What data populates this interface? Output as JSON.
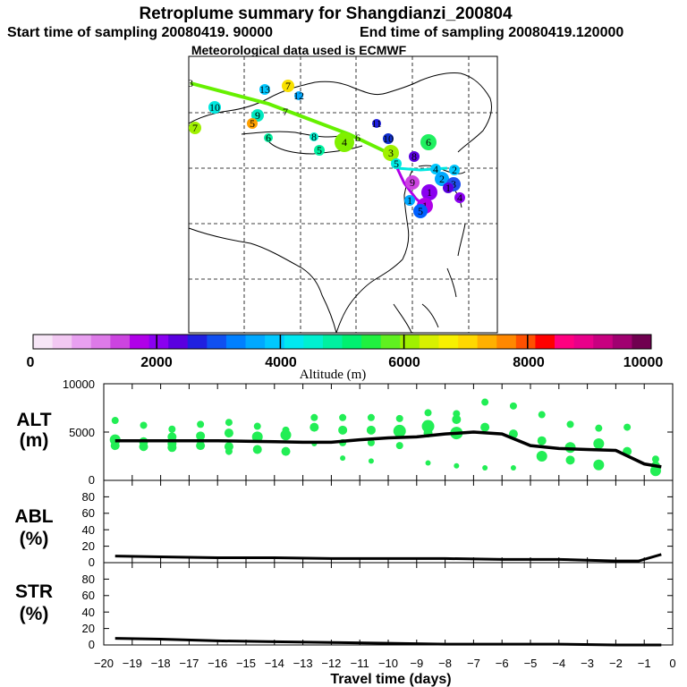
{
  "header": {
    "title": "Retroplume summary for Shangdianzi_200804",
    "start_label": "Start time of sampling 20080419. 90000",
    "end_label": "End time of sampling 20080419.120000",
    "met_label": "Meteorological data used is ECMWF"
  },
  "colorbar": {
    "label": "Altitude (m)",
    "ticks": [
      "0",
      "2000",
      "4000",
      "6000",
      "8000",
      "10000"
    ],
    "min": 0,
    "max": 10000,
    "colors": [
      "#f7e6f7",
      "#f2c8f2",
      "#e8a0f0",
      "#dd7ae8",
      "#cc44e0",
      "#b000e8",
      "#8a00f0",
      "#5a00e0",
      "#2020e0",
      "#1050f0",
      "#0080ff",
      "#00a8ff",
      "#00c8ff",
      "#00e8f0",
      "#00f0d0",
      "#00f0a0",
      "#00f070",
      "#20f040",
      "#60f020",
      "#a0f000",
      "#d8f000",
      "#f8f000",
      "#ffd800",
      "#ffb000",
      "#ff8800",
      "#ff5000",
      "#ff0000",
      "#ff0080",
      "#e8008a",
      "#c80080",
      "#a00070",
      "#700050"
    ]
  },
  "map": {
    "markers": [
      {
        "label": "3",
        "lon": -1,
        "lat": 0,
        "size": 3,
        "color": "#000000"
      },
      {
        "label": "13",
        "size": 6,
        "color": "#00c8ff"
      },
      {
        "label": "7",
        "size": 7,
        "color": "#f8e000"
      },
      {
        "label": "12",
        "size": 5,
        "color": "#00a8ff"
      },
      {
        "label": "10",
        "size": 7,
        "color": "#00e8e0"
      },
      {
        "label": "9",
        "size": 7,
        "color": "#00e8c0"
      },
      {
        "label": "5",
        "size": 6,
        "color": "#ffa000"
      },
      {
        "label": "7",
        "size": 3,
        "color": "#000000"
      },
      {
        "label": "7",
        "size": 7,
        "color": "#a0f000"
      },
      {
        "label": "6",
        "size": 5,
        "color": "#00f0a0"
      },
      {
        "label": "8",
        "size": 5,
        "color": "#00f0d0"
      },
      {
        "label": "5",
        "size": 6,
        "color": "#00f0a0"
      },
      {
        "label": "4",
        "size": 11,
        "color": "#80f000"
      },
      {
        "label": "6",
        "size": 3,
        "color": "#000000"
      },
      {
        "label": "11",
        "size": 5,
        "color": "#2020e0"
      },
      {
        "label": "10",
        "size": 6,
        "color": "#1030d0"
      },
      {
        "label": "6",
        "size": 9,
        "color": "#20f060"
      },
      {
        "label": "3",
        "size": 9,
        "color": "#a0f000"
      },
      {
        "label": "5",
        "size": 6,
        "color": "#00e8e0"
      },
      {
        "label": "8",
        "size": 6,
        "color": "#5a00e0"
      },
      {
        "label": "4",
        "size": 6,
        "color": "#00c8ff"
      },
      {
        "label": "2",
        "size": 6,
        "color": "#00c8ff"
      },
      {
        "label": "9",
        "size": 8,
        "color": "#cc44e0"
      },
      {
        "label": "2",
        "size": 8,
        "color": "#00a8ff"
      },
      {
        "label": "3",
        "size": 8,
        "color": "#2050f0"
      },
      {
        "label": "1",
        "size": 9,
        "color": "#8a00f0"
      },
      {
        "label": "4",
        "size": 6,
        "color": "#8a00f0"
      },
      {
        "label": "1",
        "size": 6,
        "color": "#00a8ff"
      },
      {
        "label": "1",
        "size": 9,
        "color": "#b000e8"
      },
      {
        "label": "5",
        "size": 8,
        "color": "#0060ff"
      },
      {
        "label": "1",
        "size": 6,
        "color": "#5a00e0"
      }
    ]
  },
  "chart_data": [
    {
      "type": "scatter+line",
      "panel": "ALT",
      "ylabel": "ALT\n(m)",
      "ylabel_line1": "ALT",
      "ylabel_line2": "(m)",
      "ylim": [
        0,
        10000
      ],
      "yticks": [
        "10000",
        "5000",
        "0"
      ],
      "xlim": [
        -20,
        0
      ],
      "mean_line": {
        "x": [
          -19.6,
          -19.0,
          -18.0,
          -17.0,
          -16.0,
          -15.0,
          -14.0,
          -13.0,
          -12.0,
          -11.0,
          -10.0,
          -9.0,
          -8.0,
          -7.0,
          -6.0,
          -5.0,
          -4.0,
          -3.0,
          -2.0,
          -1.0,
          -0.4
        ],
        "y": [
          4100,
          4100,
          4100,
          4100,
          4100,
          4050,
          4000,
          3950,
          3950,
          4200,
          4400,
          4500,
          4800,
          5000,
          4800,
          3600,
          3300,
          3200,
          3100,
          1700,
          1400
        ]
      },
      "points": {
        "x": [
          -19.6,
          -19.6,
          -19.6,
          -18.6,
          -18.6,
          -18.6,
          -17.6,
          -17.6,
          -17.6,
          -17.6,
          -16.6,
          -16.6,
          -16.6,
          -15.6,
          -15.6,
          -15.6,
          -15.6,
          -14.6,
          -14.6,
          -14.6,
          -13.6,
          -13.6,
          -13.6,
          -12.6,
          -12.6,
          -12.6,
          -11.6,
          -11.6,
          -11.6,
          -11.6,
          -10.6,
          -10.6,
          -10.6,
          -10.6,
          -9.6,
          -9.6,
          -9.6,
          -8.6,
          -8.6,
          -8.6,
          -8.6,
          -7.6,
          -7.6,
          -7.6,
          -7.6,
          -6.6,
          -6.6,
          -6.6,
          -5.6,
          -5.6,
          -5.6,
          -4.6,
          -4.6,
          -4.6,
          -3.6,
          -3.6,
          -3.6,
          -2.6,
          -2.6,
          -2.6,
          -1.6,
          -1.6,
          -0.6,
          -0.6,
          -0.6
        ],
        "y": [
          6200,
          4200,
          3600,
          5700,
          4000,
          3500,
          5300,
          4500,
          3800,
          3400,
          5800,
          4600,
          3600,
          6000,
          4900,
          3500,
          3000,
          5600,
          4500,
          3200,
          5200,
          4700,
          3000,
          6500,
          5500,
          3800,
          6500,
          5200,
          3900,
          2300,
          6500,
          5200,
          3900,
          2000,
          6400,
          5100,
          3600,
          7000,
          5600,
          4900,
          1800,
          6900,
          6300,
          4900,
          1500,
          8100,
          5500,
          1300,
          7700,
          4800,
          1300,
          6800,
          4100,
          2500,
          5800,
          3400,
          2100,
          5400,
          3800,
          1600,
          5500,
          3000,
          2200,
          1500,
          1000
        ],
        "sizes": [
          4,
          6,
          5,
          4,
          5,
          5,
          4,
          5,
          5,
          5,
          4,
          5,
          5,
          4,
          5,
          5,
          4,
          4,
          6,
          5,
          4,
          6,
          5,
          4,
          5,
          3,
          4,
          5,
          4,
          3,
          4,
          5,
          4,
          3,
          4,
          7,
          4,
          4,
          7,
          5,
          3,
          4,
          5,
          7,
          3,
          4,
          5,
          3,
          4,
          5,
          3,
          4,
          5,
          6,
          4,
          6,
          5,
          4,
          6,
          6,
          4,
          5,
          4,
          5,
          6
        ]
      }
    },
    {
      "type": "line",
      "panel": "ABL",
      "ylabel_line1": "ABL",
      "ylabel_line2": "(%)",
      "ylim": [
        0,
        100
      ],
      "yticks": [
        "80",
        "60",
        "40",
        "20",
        "0"
      ],
      "xlim": [
        -20,
        0
      ],
      "x": [
        -19.6,
        -18,
        -16,
        -14,
        -12,
        -10,
        -8,
        -6,
        -5,
        -4,
        -3,
        -2,
        -1.2,
        -0.4
      ],
      "y": [
        8,
        7,
        6,
        6,
        5,
        5,
        5,
        4,
        4,
        4,
        3,
        2,
        2,
        10
      ]
    },
    {
      "type": "line",
      "panel": "STR",
      "ylabel_line1": "STR",
      "ylabel_line2": "(%)",
      "ylim": [
        0,
        100
      ],
      "yticks": [
        "80",
        "60",
        "40",
        "20",
        "0"
      ],
      "xlim": [
        -20,
        0
      ],
      "x": [
        -19.6,
        -18,
        -16,
        -14,
        -12,
        -10,
        -8,
        -6,
        -4,
        -2,
        -0.4
      ],
      "y": [
        8,
        7,
        5,
        4,
        3,
        2,
        1,
        1,
        1,
        0,
        0
      ],
      "xlabel": "Travel time (days)",
      "xticks": [
        "-20",
        "-19",
        "-18",
        "-17",
        "-16",
        "-15",
        "-14",
        "-13",
        "-12",
        "-11",
        "-10",
        "-9",
        "-8",
        "-7",
        "-6",
        "-5",
        "-4",
        "-3",
        "-2",
        "-1",
        "0"
      ]
    }
  ]
}
